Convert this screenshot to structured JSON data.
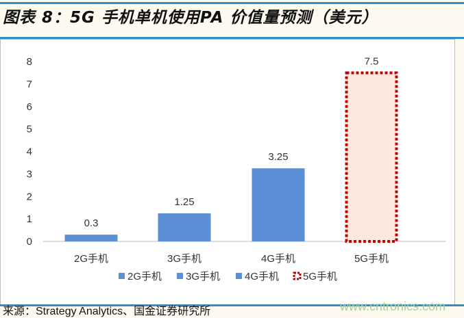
{
  "title": "图表 8：5G 手机单机使用PA 价值量预测（美元）",
  "source": "来源：Strategy Analytics、国金证券研究所",
  "watermark": "www.cntronics.com",
  "colors": {
    "bar": "#5b8fd6",
    "dashed_border": "#c00000",
    "dashed_fill": "#fce8dc",
    "rule": "#2e8fcb"
  },
  "chart_data": {
    "type": "bar",
    "categories": [
      "2G手机",
      "3G手机",
      "4G手机",
      "5G手机"
    ],
    "values": [
      0.3,
      1.25,
      3.25,
      7.5
    ],
    "data_labels": [
      "0.3",
      "1.25",
      "3.25",
      "7.5"
    ],
    "ylim": [
      0,
      8
    ],
    "yticks": [
      "0",
      "1",
      "2",
      "3",
      "4",
      "5",
      "6",
      "7",
      "8"
    ],
    "grid": false,
    "legend": {
      "placement": "bottom",
      "entries": [
        "2G手机",
        "3G手机",
        "4G手机",
        "5G手机"
      ]
    },
    "styles": [
      "solid",
      "solid",
      "solid",
      "dashed"
    ]
  }
}
